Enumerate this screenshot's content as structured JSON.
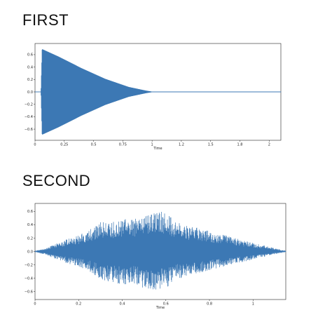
{
  "charts": [
    {
      "heading": "FIRST",
      "chart_data": {
        "type": "line",
        "title": "FIRST",
        "xlabel": "Time",
        "ylabel": "",
        "xlim": [
          0,
          2.1
        ],
        "ylim": [
          -0.78,
          0.78
        ],
        "xticks": [
          0,
          0.25,
          0.5,
          0.75,
          1,
          1.25,
          1.5,
          1.75,
          2
        ],
        "xtick_labels": [
          "0",
          "0.25",
          "0.5",
          "0.75",
          "1",
          "1.2",
          "1.5",
          "1.8",
          "2"
        ],
        "yticks": [
          -0.6,
          -0.4,
          -0.2,
          0.0,
          0.2,
          0.4,
          0.6
        ],
        "ytick_labels": [
          "−0.6",
          "−0.4",
          "−0.2",
          "0.0",
          "0.2",
          "0.4",
          "0.6"
        ],
        "series_color": "#3c78b4",
        "envelope": {
          "x": [
            0,
            0.05,
            0.06,
            0.2,
            0.4,
            0.6,
            0.8,
            0.95,
            1.0,
            2.1
          ],
          "upper": [
            0,
            0,
            0.69,
            0.57,
            0.38,
            0.21,
            0.08,
            0.02,
            0.005,
            0.005
          ],
          "lower": [
            0,
            0,
            -0.69,
            -0.57,
            -0.38,
            -0.21,
            -0.08,
            -0.02,
            -0.005,
            -0.005
          ]
        }
      }
    },
    {
      "heading": "SECOND",
      "chart_data": {
        "type": "line",
        "title": "SECOND",
        "xlabel": "Time",
        "ylabel": "",
        "xlim": [
          0,
          1.15
        ],
        "ylim": [
          -0.72,
          0.72
        ],
        "xticks": [
          0,
          0.2,
          0.4,
          0.6,
          0.8,
          1
        ],
        "xtick_labels": [
          "0",
          "0.2",
          "0.4",
          "0.6",
          "0.8",
          "1"
        ],
        "yticks": [
          -0.6,
          -0.4,
          -0.2,
          0.0,
          0.2,
          0.4,
          0.6
        ],
        "ytick_labels": [
          "−0.6",
          "−0.4",
          "−0.2",
          "0.0",
          "0.2",
          "0.4",
          "0.6"
        ],
        "series_color": "#3c78b4",
        "envelope": {
          "x": [
            0,
            0.05,
            0.1,
            0.15,
            0.2,
            0.25,
            0.3,
            0.35,
            0.4,
            0.45,
            0.5,
            0.55,
            0.6,
            0.65,
            0.7,
            0.75,
            0.8,
            0.85,
            0.9,
            0.95,
            1.0,
            1.05,
            1.1,
            1.15
          ],
          "upper": [
            0.01,
            0.05,
            0.12,
            0.19,
            0.24,
            0.33,
            0.45,
            0.43,
            0.5,
            0.48,
            0.53,
            0.64,
            0.57,
            0.45,
            0.38,
            0.36,
            0.31,
            0.26,
            0.22,
            0.17,
            0.13,
            0.09,
            0.05,
            0.01
          ],
          "lower": [
            -0.01,
            -0.05,
            -0.12,
            -0.18,
            -0.23,
            -0.3,
            -0.42,
            -0.46,
            -0.5,
            -0.48,
            -0.55,
            -0.58,
            -0.55,
            -0.42,
            -0.36,
            -0.33,
            -0.28,
            -0.24,
            -0.2,
            -0.16,
            -0.12,
            -0.08,
            -0.04,
            -0.01
          ]
        }
      }
    }
  ]
}
